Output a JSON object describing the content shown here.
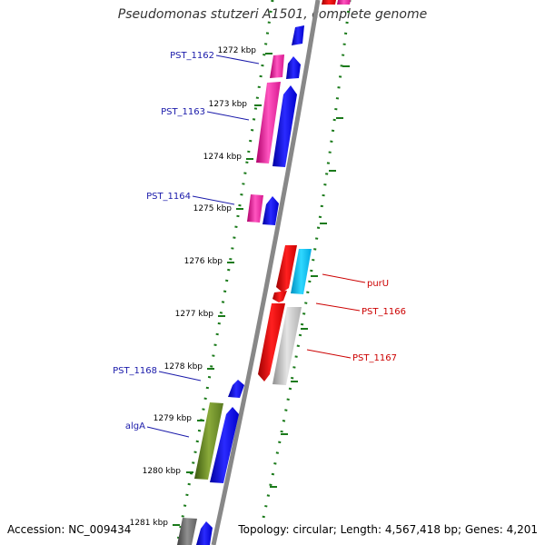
{
  "title": "Pseudomonas stutzeri A1501, complete genome",
  "footer": {
    "accession": "Accession: NC_009434",
    "stats": "Topology: circular; Length: 4,567,418 bp; Genes: 4,201"
  },
  "colors": {
    "backbone": "#888888",
    "tick": "#1a7a1a",
    "label_left": "#1a1aaa",
    "label_right": "#cc0000"
  },
  "ticks": [
    {
      "label": "1272 kbp"
    },
    {
      "label": "1273 kbp"
    },
    {
      "label": "1274 kbp"
    },
    {
      "label": "1275 kbp"
    },
    {
      "label": "1276 kbp"
    },
    {
      "label": "1277 kbp"
    },
    {
      "label": "1278 kbp"
    },
    {
      "label": "1279 kbp"
    },
    {
      "label": "1280 kbp"
    },
    {
      "label": "1281 kbp"
    }
  ],
  "gene_labels": [
    {
      "name": "PST_1162",
      "side": "left"
    },
    {
      "name": "PST_1163",
      "side": "left"
    },
    {
      "name": "PST_1164",
      "side": "left"
    },
    {
      "name": "PST_1168",
      "side": "left"
    },
    {
      "name": "algA",
      "side": "left"
    },
    {
      "name": "purU",
      "side": "right"
    },
    {
      "name": "PST_1166",
      "side": "right"
    },
    {
      "name": "PST_1167",
      "side": "right"
    }
  ]
}
